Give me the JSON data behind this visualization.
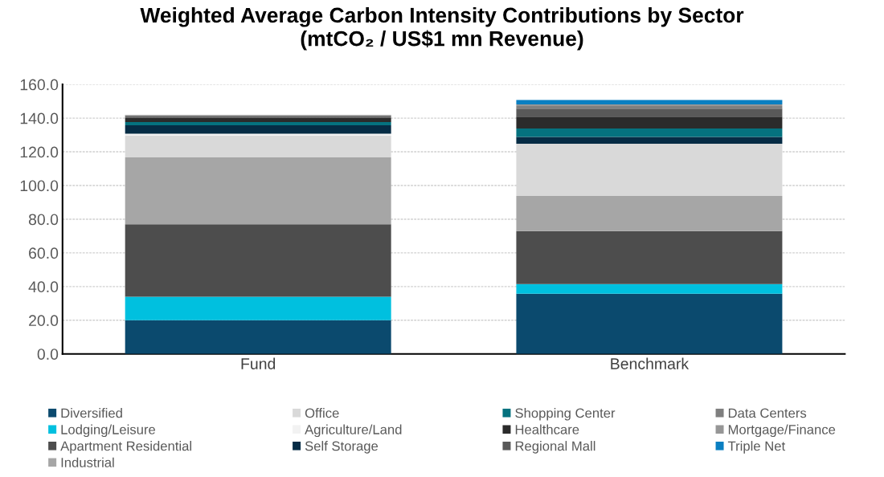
{
  "chart_data": {
    "type": "bar",
    "title": "Weighted Average Carbon Intensity Contributions by Sector\n(mtCO₂ / US$1 mn Revenue)",
    "categories": [
      "Fund",
      "Benchmark"
    ],
    "stacked": true,
    "grid": "y",
    "legend": "bottom",
    "ylim": [
      0,
      160
    ],
    "yticks": [
      {
        "value": 0,
        "label": "0.0"
      },
      {
        "value": 20,
        "label": "20.0"
      },
      {
        "value": 40,
        "label": "40.0"
      },
      {
        "value": 60,
        "label": "60.0"
      },
      {
        "value": 80,
        "label": "80.0"
      },
      {
        "value": 100,
        "label": "100.0"
      },
      {
        "value": 120,
        "label": "120.0"
      },
      {
        "value": 140,
        "label": "140.0"
      },
      {
        "value": 160,
        "label": "160.0"
      }
    ],
    "series": [
      {
        "name": "Diversified",
        "color": "#0b4a6e",
        "values": [
          20.0,
          35.7
        ]
      },
      {
        "name": "Lodging/Leisure",
        "color": "#00c0df",
        "values": [
          14.0,
          5.8
        ]
      },
      {
        "name": "Apartment Residential",
        "color": "#4d4d4d",
        "values": [
          43.0,
          31.4
        ]
      },
      {
        "name": "Industrial",
        "color": "#a6a6a6",
        "values": [
          39.7,
          20.9
        ]
      },
      {
        "name": "Office",
        "color": "#d9d9d9",
        "values": [
          13.0,
          31.0
        ]
      },
      {
        "name": "Agriculture/Land",
        "color": "#f2f2f2",
        "values": [
          1.0,
          0.0
        ]
      },
      {
        "name": "Self Storage",
        "color": "#062c45",
        "values": [
          5.1,
          4.0
        ]
      },
      {
        "name": "Shopping Center",
        "color": "#05727f",
        "values": [
          1.9,
          5.0
        ]
      },
      {
        "name": "Healthcare",
        "color": "#2b2b2b",
        "values": [
          2.5,
          7.1
        ]
      },
      {
        "name": "Regional Mall",
        "color": "#595959",
        "values": [
          1.0,
          4.8
        ]
      },
      {
        "name": "Data Centers",
        "color": "#7f7f7f",
        "values": [
          0.5,
          1.5
        ]
      },
      {
        "name": "Mortgage/Finance",
        "color": "#969696",
        "values": [
          0.2,
          1.0
        ]
      },
      {
        "name": "Triple Net",
        "color": "#0a7fc1",
        "values": [
          0.0,
          2.6
        ]
      }
    ]
  }
}
